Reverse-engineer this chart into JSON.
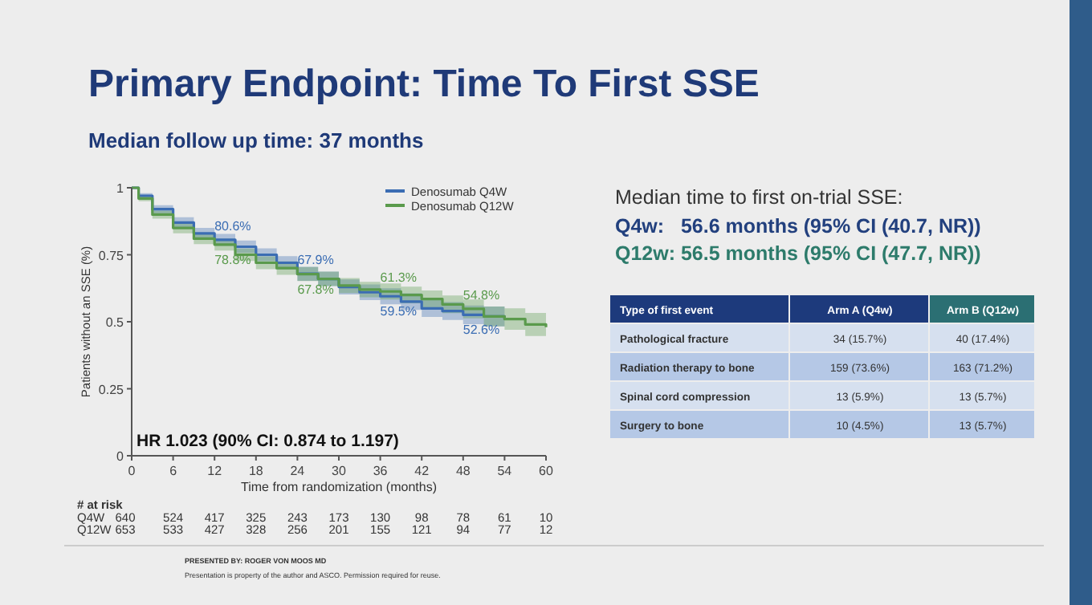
{
  "chart_data": [
    {
      "type": "step",
      "title": "Primary Endpoint: Time To First SSE",
      "subtitle": "Median follow up time: 37 months",
      "xlabel": "Time from randomization (months)",
      "ylabel": "Patients without an SSE (%)",
      "x": [
        0,
        1,
        3,
        6,
        9,
        12,
        15,
        18,
        21,
        24,
        27,
        30,
        33,
        36,
        39,
        42,
        45,
        48,
        51,
        54,
        57,
        60
      ],
      "series": [
        {
          "name": "Denosumab Q4W",
          "color": "#3b6db3",
          "values": [
            1,
            0.97,
            0.92,
            0.87,
            0.83,
            0.806,
            0.78,
            0.75,
            0.72,
            0.679,
            0.66,
            0.63,
            0.61,
            0.595,
            0.575,
            0.55,
            0.54,
            0.526,
            0.52,
            0.51,
            null,
            null
          ],
          "lower": [
            1,
            0.96,
            0.905,
            0.85,
            0.81,
            0.784,
            0.757,
            0.726,
            0.695,
            0.653,
            0.633,
            0.602,
            0.581,
            0.565,
            0.544,
            0.518,
            0.507,
            0.491,
            0.483,
            0.47,
            null,
            null
          ],
          "upper": [
            1,
            0.98,
            0.935,
            0.89,
            0.85,
            0.828,
            0.803,
            0.774,
            0.745,
            0.705,
            0.687,
            0.658,
            0.639,
            0.625,
            0.606,
            0.582,
            0.573,
            0.561,
            0.557,
            0.55,
            null,
            null
          ]
        },
        {
          "name": "Denosumab Q12W",
          "color": "#5a9a4c",
          "values": [
            1,
            0.96,
            0.9,
            0.85,
            0.81,
            0.788,
            0.75,
            0.72,
            0.7,
            0.678,
            0.66,
            0.635,
            0.62,
            0.613,
            0.6,
            0.585,
            0.565,
            0.548,
            0.52,
            0.51,
            0.49,
            0.48
          ],
          "lower": [
            1,
            0.95,
            0.885,
            0.83,
            0.79,
            0.766,
            0.727,
            0.696,
            0.675,
            0.652,
            0.633,
            0.607,
            0.591,
            0.583,
            0.569,
            0.553,
            0.532,
            0.513,
            0.483,
            0.47,
            0.447,
            0.435
          ],
          "upper": [
            1,
            0.97,
            0.915,
            0.87,
            0.83,
            0.81,
            0.773,
            0.744,
            0.725,
            0.704,
            0.687,
            0.663,
            0.649,
            0.643,
            0.631,
            0.617,
            0.598,
            0.583,
            0.557,
            0.55,
            0.533,
            0.525
          ]
        }
      ],
      "xlim": [
        0,
        60
      ],
      "ylim": [
        0,
        1
      ],
      "xticks": [
        0,
        6,
        12,
        18,
        24,
        30,
        36,
        42,
        48,
        54,
        60
      ],
      "yticks": [
        0,
        {
          "value": 0.25,
          "label": "0.25"
        },
        {
          "value": 0.5,
          "label": "0.5"
        },
        {
          "value": 0.75,
          "label": "0.75"
        },
        1
      ],
      "legend": "top right",
      "annotations": [
        {
          "text": "80.6%",
          "x": 12,
          "y": 0.806
        },
        {
          "text": "78.8%",
          "x": 12,
          "y": 0.788
        },
        {
          "text": "67.9%",
          "x": 24,
          "y": 0.679
        },
        {
          "text": "67.8%",
          "x": 24,
          "y": 0.678
        },
        {
          "text": "61.3%",
          "x": 36,
          "y": 0.613
        },
        {
          "text": "59.5%",
          "x": 36,
          "y": 0.595
        },
        {
          "text": "54.8%",
          "x": 48,
          "y": 0.548
        },
        {
          "text": "52.6%",
          "x": 48,
          "y": 0.526
        },
        "HR 1.023 (90% CI: 0.874 to 1.197)",
        "# at risk",
        "Q4W",
        "640",
        "524",
        "417",
        "325",
        "243",
        "173",
        "130",
        "98",
        "78",
        "61",
        "10",
        "Q12W",
        "653",
        "533",
        "427",
        "328",
        "256",
        "201",
        "155",
        "121",
        "94",
        "77",
        "12"
      ]
    },
    {
      "type": "other",
      "title": "Median time to first on-trial SSE:",
      "annotations": [
        "Q4w:   56.6 months (95% CI (40.7, NR))",
        "Q12w: 56.5 months (95% CI (47.7, NR))",
        "Type of first event",
        "Arm A (Q4w)",
        "Arm B (Q12w)",
        "Pathological fracture",
        "34 (15.7%)",
        "40 (17.4%)",
        "Radiation therapy to bone",
        "159 (73.6%)",
        "163 (71.2%)",
        "Spinal cord compression",
        "13 (5.9%)",
        "13 (5.7%)",
        "Surgery to bone",
        "10 (4.5%)",
        "13 (5.7%)",
        "PRESENTED BY: ROGER VON MOOS MD",
        "Presentation is property of the author and ASCO. Permission required for reuse."
      ]
    }
  ]
}
